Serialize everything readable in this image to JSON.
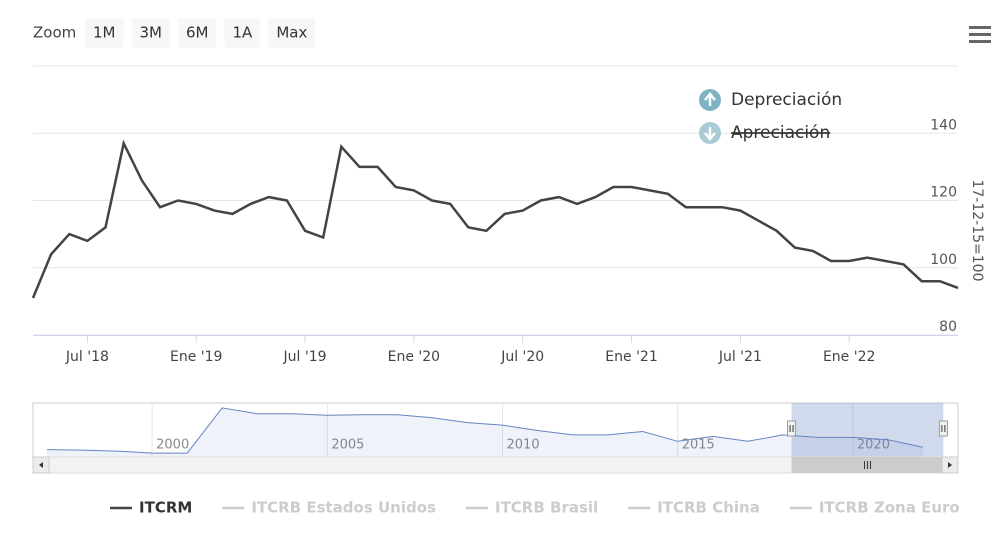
{
  "zoom": {
    "label": "Zoom",
    "buttons": [
      "1M",
      "3M",
      "6M",
      "1A",
      "Max"
    ]
  },
  "chart_data": [
    {
      "type": "line",
      "y_axis_label": "17-12-15=100",
      "x": [
        "2018-04",
        "2018-05",
        "2018-06",
        "2018-07",
        "2018-08",
        "2018-09",
        "2018-10",
        "2018-11",
        "2018-12",
        "2019-01",
        "2019-02",
        "2019-03",
        "2019-04",
        "2019-05",
        "2019-06",
        "2019-07",
        "2019-08",
        "2019-09",
        "2019-10",
        "2019-11",
        "2019-12",
        "2020-01",
        "2020-02",
        "2020-03",
        "2020-04",
        "2020-05",
        "2020-06",
        "2020-07",
        "2020-08",
        "2020-09",
        "2020-10",
        "2020-11",
        "2020-12",
        "2021-01",
        "2021-02",
        "2021-03",
        "2021-04",
        "2021-05",
        "2021-06",
        "2021-07",
        "2021-08",
        "2021-09",
        "2021-10",
        "2021-11",
        "2021-12",
        "2022-01",
        "2022-02",
        "2022-03",
        "2022-04",
        "2022-05",
        "2022-06",
        "2022-07"
      ],
      "series": [
        {
          "name": "ITCRM",
          "color": "#434348",
          "values": [
            91,
            104,
            110,
            108,
            112,
            137,
            126,
            118,
            120,
            119,
            117,
            116,
            119,
            121,
            120,
            111,
            109,
            136,
            130,
            130,
            124,
            123,
            120,
            119,
            112,
            111,
            116,
            117,
            120,
            121,
            119,
            121,
            124,
            124,
            123,
            122,
            118,
            118,
            118,
            117,
            114,
            111,
            106,
            105,
            102,
            102,
            103,
            102,
            101,
            96,
            96,
            94
          ]
        }
      ],
      "hidden_series": [
        "ITCRB Estados Unidos",
        "ITCRB Brasil",
        "ITCRB China",
        "ITCRB Zona Euro"
      ],
      "xlim": [
        "2018-04",
        "2022-07"
      ],
      "xticks": [
        {
          "value": "2018-07",
          "label": "Jul '18"
        },
        {
          "value": "2019-01",
          "label": "Ene '19"
        },
        {
          "value": "2019-07",
          "label": "Jul '19"
        },
        {
          "value": "2020-01",
          "label": "Ene '20"
        },
        {
          "value": "2020-07",
          "label": "Jul '20"
        },
        {
          "value": "2021-01",
          "label": "Ene '21"
        },
        {
          "value": "2021-07",
          "label": "Jul '21"
        },
        {
          "value": "2022-01",
          "label": "Ene '22"
        }
      ],
      "ylim": [
        80,
        160
      ],
      "yticks": [
        80,
        100,
        120,
        140
      ],
      "grid": true,
      "flags": [
        {
          "label": "Depreciación",
          "visible": true
        },
        {
          "label": "Apreciación",
          "visible": false
        }
      ]
    },
    {
      "type": "area",
      "x": [
        1997,
        1998,
        1999,
        2000,
        2001,
        2002,
        2003,
        2004,
        2005,
        2006,
        2007,
        2008,
        2009,
        2010,
        2011,
        2012,
        2013,
        2014,
        2015,
        2016,
        2017,
        2018,
        2019,
        2020,
        2021,
        2022
      ],
      "series": [
        {
          "color": "#6685c2",
          "values": [
            95,
            94,
            92,
            88,
            88,
            180,
            168,
            168,
            165,
            166,
            166,
            160,
            150,
            145,
            134,
            125,
            125,
            132,
            112,
            122,
            112,
            125,
            120,
            120,
            115,
            100
          ]
        }
      ],
      "xlim": [
        1996.6,
        2023
      ],
      "xticks": [
        2000,
        2005,
        2010,
        2015,
        2020
      ],
      "ylim": [
        80,
        190
      ]
    }
  ]
}
